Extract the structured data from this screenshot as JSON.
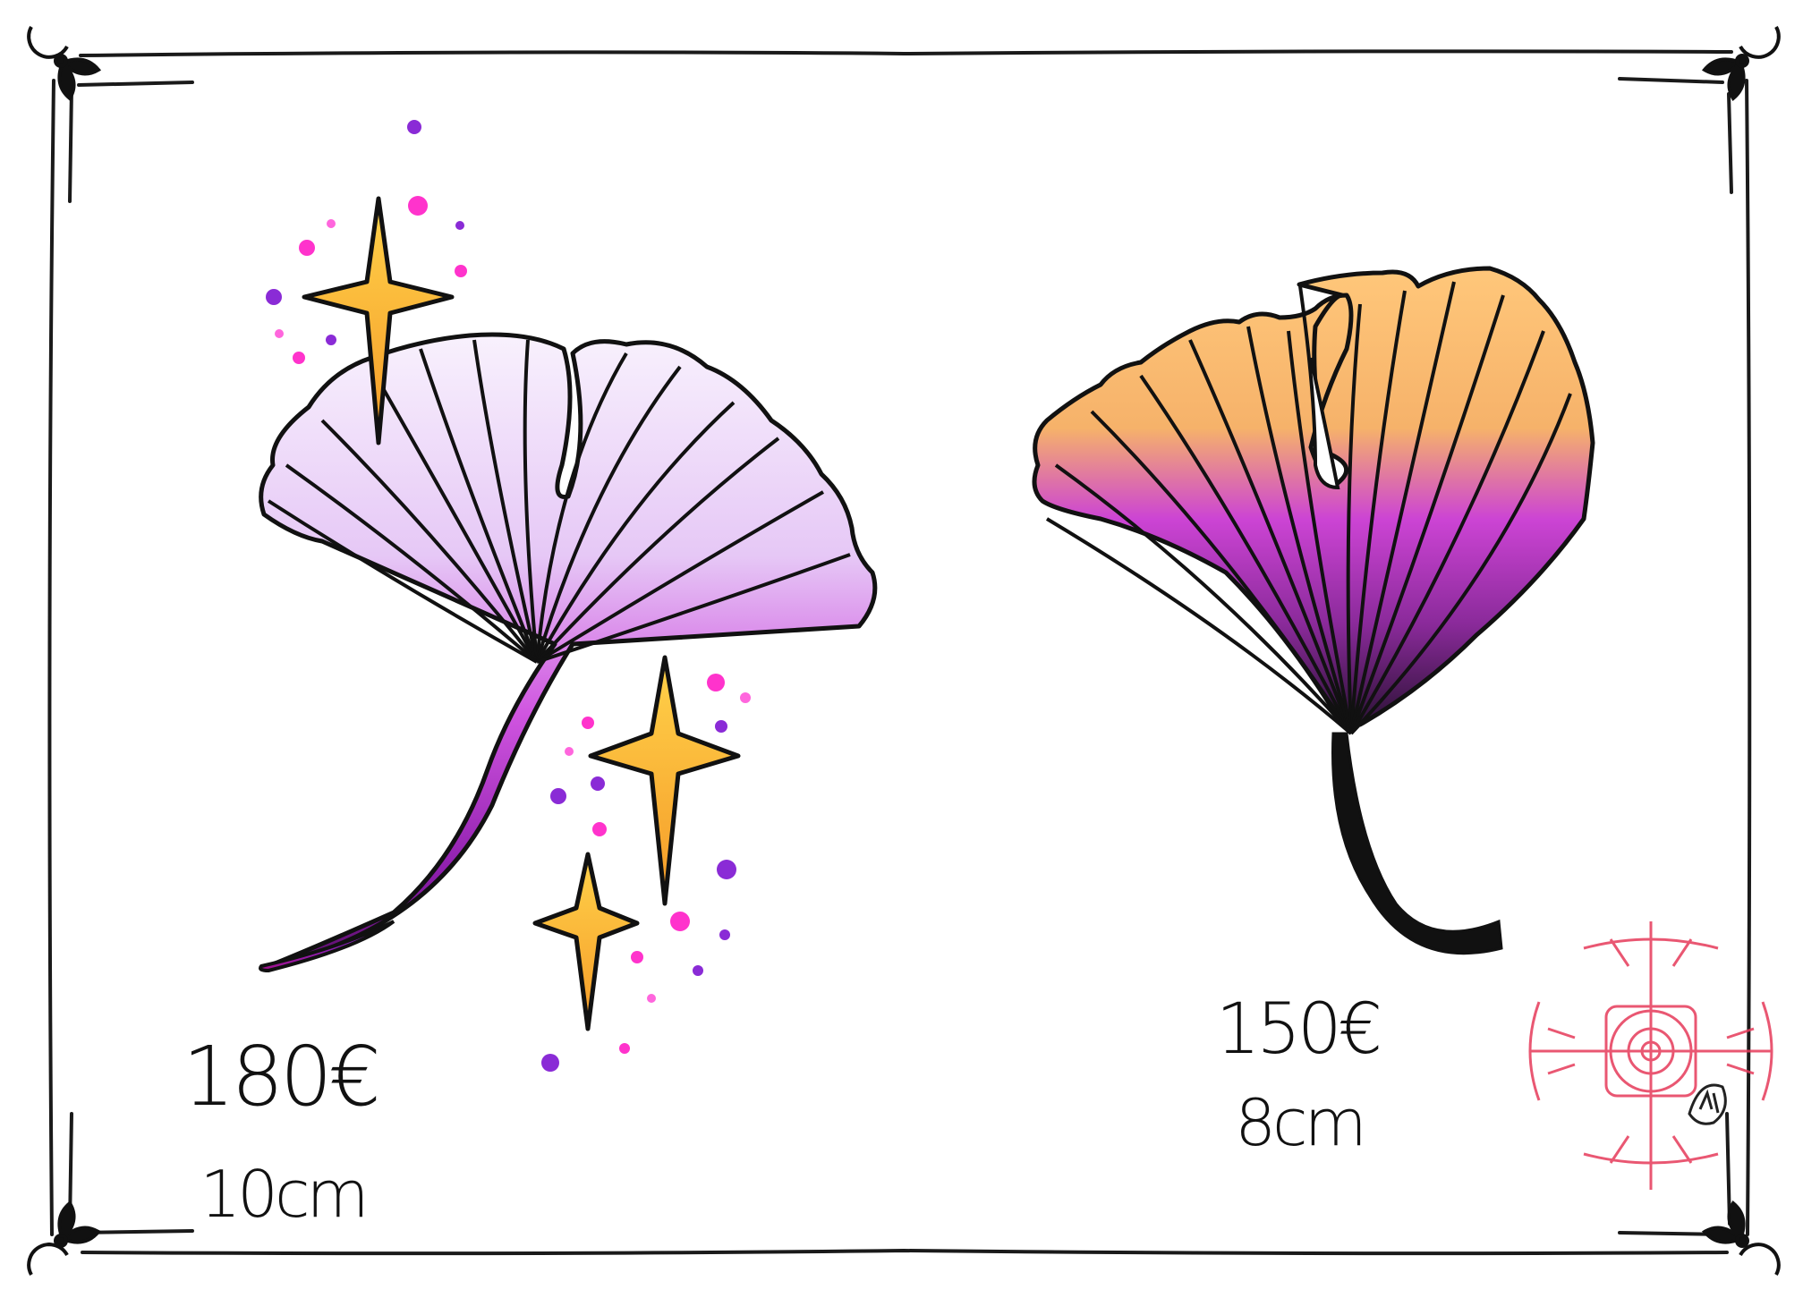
{
  "flash_sheet": {
    "designs": [
      {
        "name": "ginkgo-leaf-purple",
        "price": "180€",
        "size": "10cm",
        "colors": {
          "fill": "#cc33cc",
          "light": "#f4ecfb",
          "accent": "#9900aa"
        }
      },
      {
        "name": "ginkgo-leaf-orange",
        "price": "150€",
        "size": "8cm",
        "colors": {
          "fill": "#f7b95c",
          "mid": "#cc44cc",
          "dark": "#3a1d4a"
        }
      }
    ],
    "sparkle_color": "#f7b032",
    "dot_colors": [
      "#ff33cc",
      "#8a2bd6"
    ],
    "frame_color": "#1a1a1a",
    "stamp_color": "#e63a5a"
  }
}
